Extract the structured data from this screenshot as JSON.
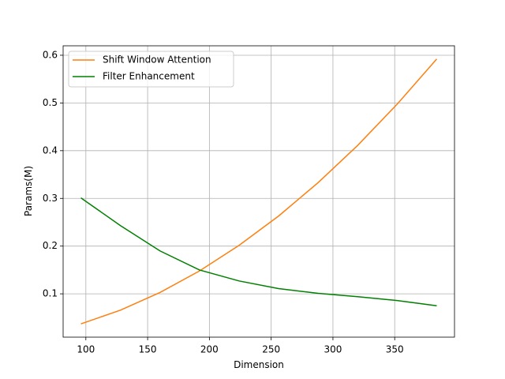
{
  "chart_data": {
    "type": "line",
    "x_label": "Dimension",
    "y_label": "Params(M)",
    "x": [
      96,
      128,
      160,
      192,
      224,
      256,
      288,
      320,
      352,
      384
    ],
    "series": [
      {
        "name": "Shift Window Attention",
        "color": "#ff7f0e",
        "values": [
          0.037,
          0.0658,
          0.1028,
          0.148,
          0.2015,
          0.263,
          0.333,
          0.411,
          0.4975,
          0.592
        ]
      },
      {
        "name": "Filter Enhancement",
        "color": "#008000",
        "values": [
          0.301,
          0.243,
          0.19,
          0.15,
          0.127,
          0.111,
          0.101,
          0.094,
          0.086,
          0.075
        ]
      }
    ],
    "xlim": [
      81.6,
      398.4
    ],
    "xticks": [
      100,
      150,
      200,
      250,
      300,
      350
    ],
    "ylim": [
      0.0092,
      0.6198
    ],
    "yticks": [
      0.1,
      0.2,
      0.3,
      0.4,
      0.5,
      0.6
    ],
    "grid": true,
    "legend": "upper-left"
  }
}
